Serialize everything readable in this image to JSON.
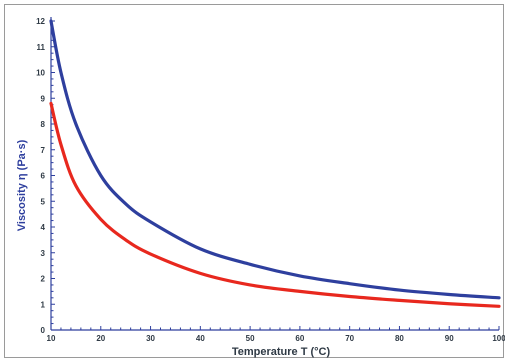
{
  "chart_data": {
    "type": "line",
    "title": "",
    "xlabel": "Temperature T (°C)",
    "ylabel": "Viscosity η (Pa·s)",
    "xlim": [
      10,
      100
    ],
    "ylim": [
      0,
      12
    ],
    "x_ticks": [
      "10",
      "20",
      "30",
      "40",
      "50",
      "60",
      "70",
      "80",
      "90",
      "100"
    ],
    "y_ticks": [
      "0",
      "1",
      "2",
      "3",
      "4",
      "5",
      "6",
      "7",
      "8",
      "9",
      "10",
      "11",
      "12"
    ],
    "grid": false,
    "legend": "none",
    "colors": {
      "series_upper": "#2e3f9e",
      "series_lower": "#e8281e",
      "axis": "#2e3f9e",
      "xlabel": "#2f3a45",
      "ylabel": "#2e3f9e"
    },
    "series": [
      {
        "x": [
          10,
          12,
          15,
          20,
          25,
          30,
          40,
          50,
          60,
          70,
          80,
          90,
          100
        ],
        "values": [
          12.0,
          10.0,
          8.0,
          6.0,
          4.9,
          4.2,
          3.15,
          2.55,
          2.1,
          1.8,
          1.55,
          1.38,
          1.25
        ]
      },
      {
        "x": [
          10,
          12,
          15,
          20,
          25,
          30,
          40,
          50,
          60,
          70,
          80,
          90,
          100
        ],
        "values": [
          8.8,
          7.2,
          5.6,
          4.3,
          3.5,
          2.95,
          2.2,
          1.75,
          1.5,
          1.3,
          1.15,
          1.02,
          0.92
        ]
      }
    ]
  }
}
